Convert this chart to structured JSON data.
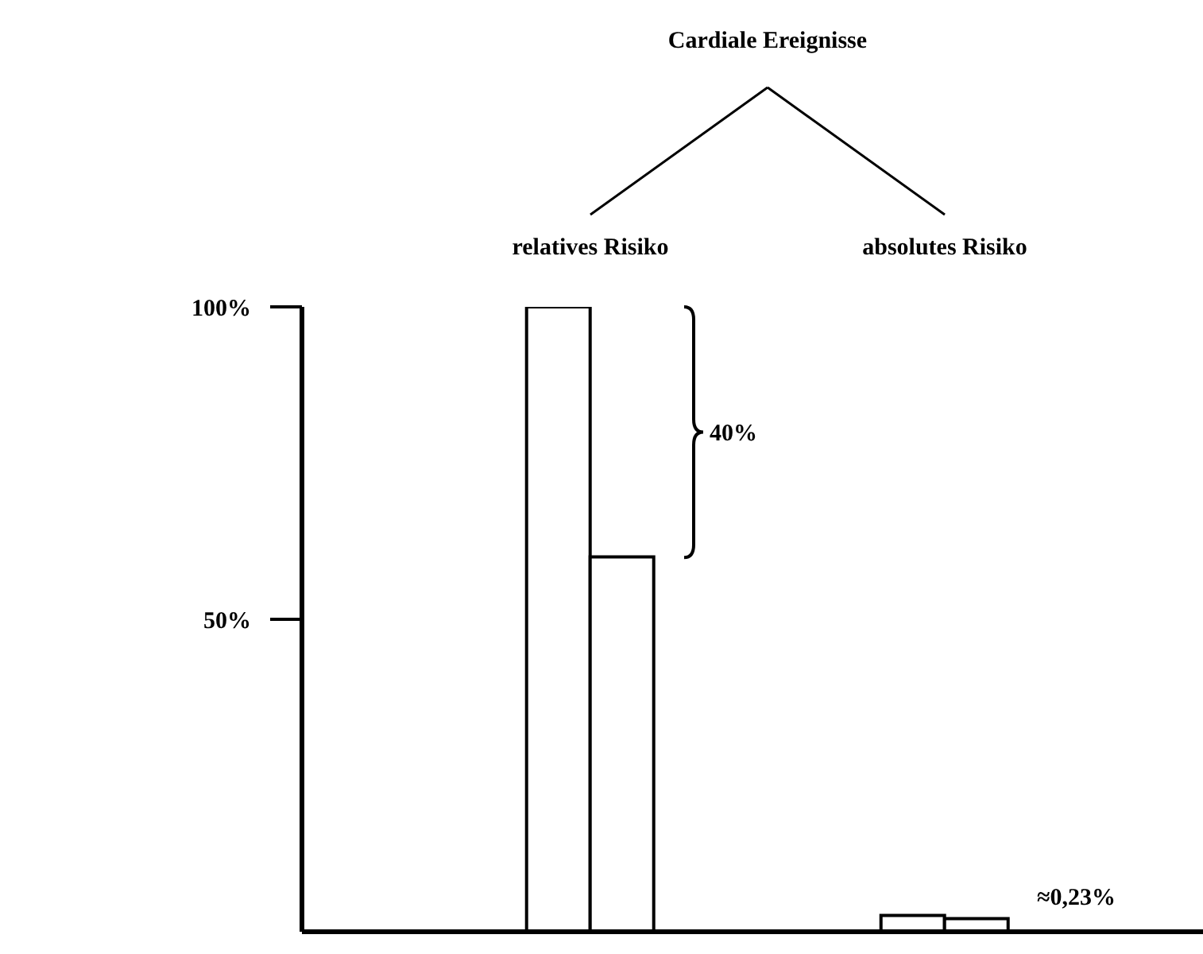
{
  "chart_data": {
    "type": "bar",
    "title": "Cardiale Ereignisse",
    "categories": [
      "relatives Risiko",
      "absolutes Risiko"
    ],
    "series": [
      {
        "color": "#ffffff",
        "values": [
          100,
          2.6
        ]
      },
      {
        "color": "#ffffff",
        "values": [
          60,
          2.1
        ]
      }
    ],
    "ylim": [
      0,
      100
    ],
    "yticks": [
      {
        "value": 50,
        "label": "50%"
      },
      {
        "value": 100,
        "label": "100%"
      }
    ],
    "annotations": [
      "40%",
      "≈0,23%"
    ],
    "grid": false,
    "legend": false
  }
}
